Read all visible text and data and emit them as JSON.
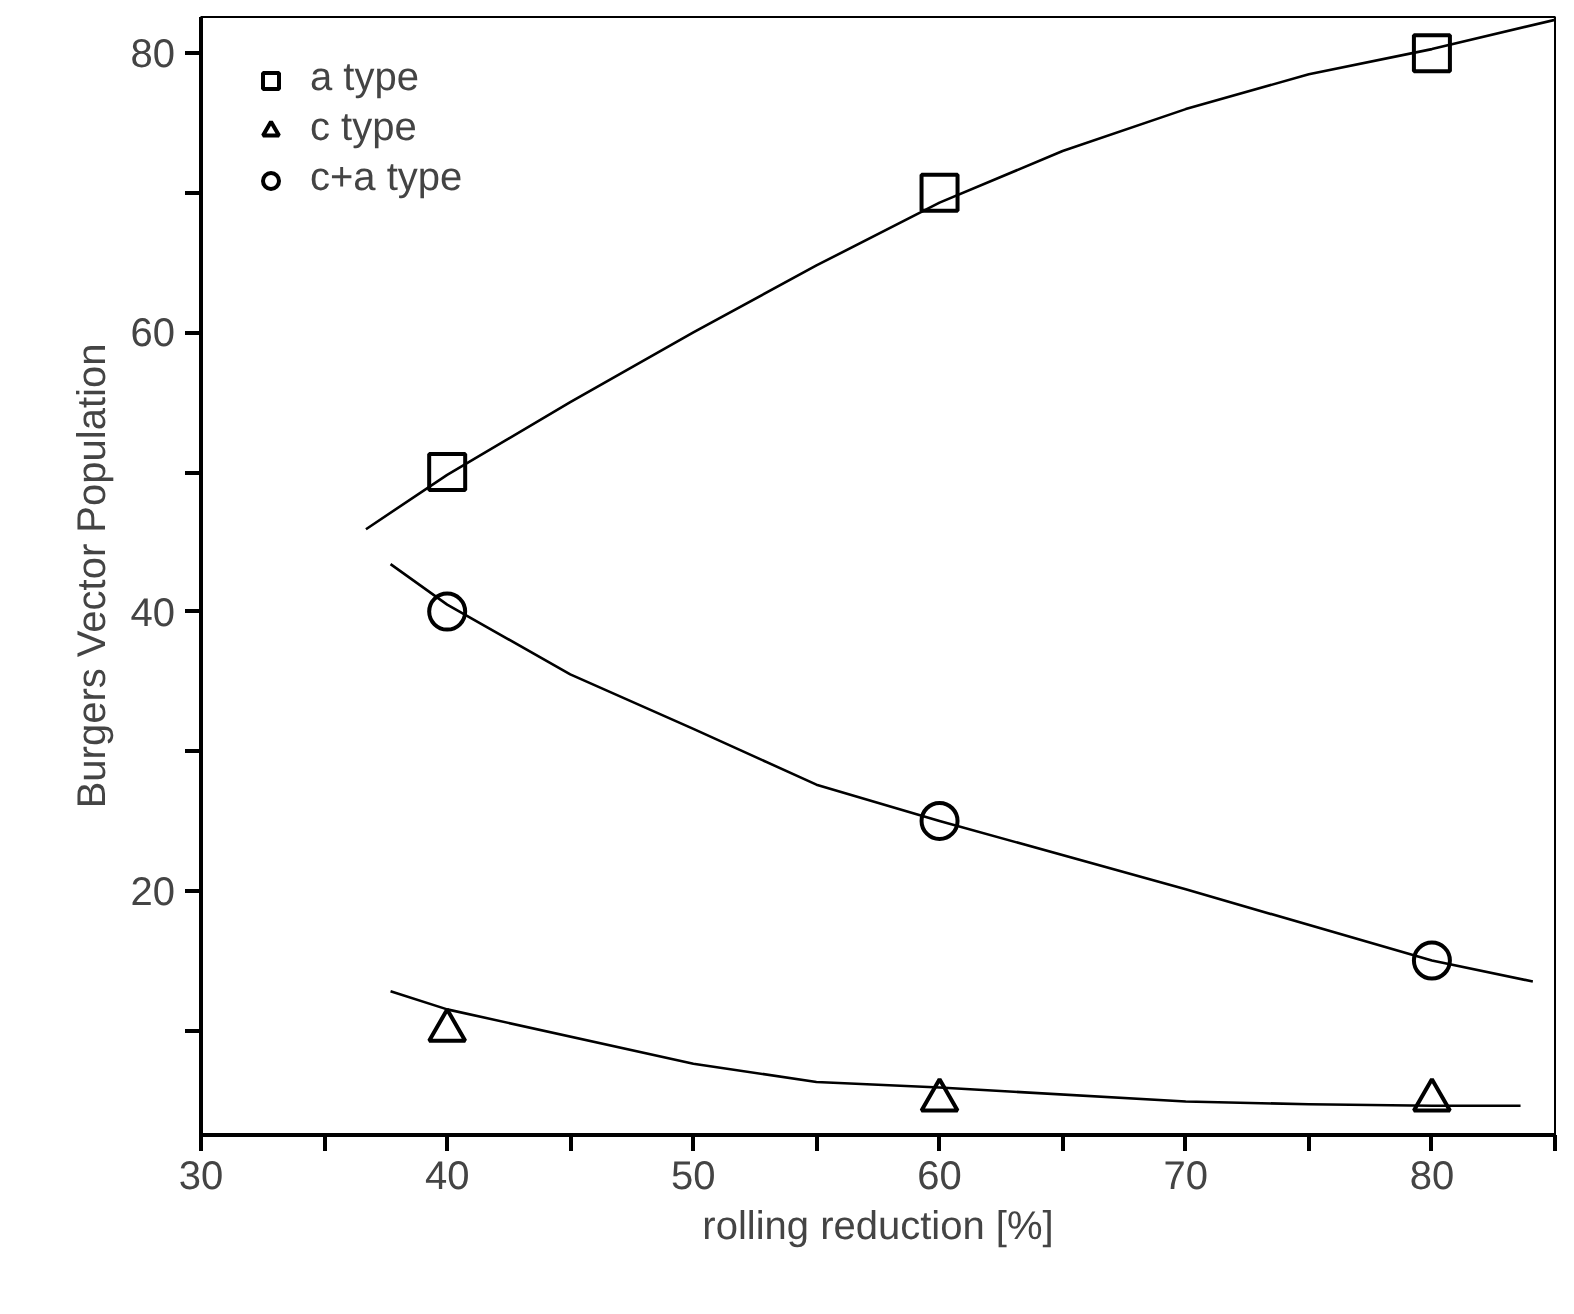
{
  "chart_data": {
    "type": "scatter",
    "xlabel": "rolling reduction [%]",
    "ylabel": "Burgers Vector Population",
    "xlim": [
      30,
      85
    ],
    "ylim": [
      2.5,
      82.6
    ],
    "xticks": [
      30,
      {
        "value": 35,
        "label": null
      },
      40,
      {
        "value": 45,
        "label": null
      },
      50,
      {
        "value": 55,
        "label": null
      },
      60,
      {
        "value": 65,
        "label": null
      },
      70,
      {
        "value": 75,
        "label": null
      },
      80,
      {
        "value": 85,
        "label": null
      }
    ],
    "yticks": [
      {
        "value": 10,
        "label": null
      },
      20,
      {
        "value": 30,
        "label": null
      },
      40,
      {
        "value": 50,
        "label": null
      },
      60,
      {
        "value": 70,
        "label": null
      },
      80
    ],
    "grid": false,
    "legend": "top left",
    "x": [
      40,
      60,
      80
    ],
    "series": [
      {
        "name": "a type",
        "color": "#000000",
        "marker": "square",
        "values": [
          50,
          70,
          80
        ]
      },
      {
        "name": "c type",
        "color": "#000000",
        "marker": "triangle",
        "values": [
          10,
          5,
          5
        ]
      },
      {
        "name": "c+a type",
        "color": "#000000",
        "marker": "circle",
        "values": [
          40,
          25,
          15
        ]
      },
      {
        "type": "line",
        "color": "#000000",
        "marker": "none",
        "x": [
          36.7,
          40,
          45,
          50,
          55,
          60,
          65,
          70,
          75,
          80,
          85
        ],
        "values": [
          45.9,
          49.8,
          55,
          60,
          64.8,
          69.3,
          73,
          76,
          78.5,
          80.3,
          82.4
        ]
      },
      {
        "type": "line",
        "color": "#000000",
        "marker": "none",
        "x": [
          37.7,
          40,
          45,
          50,
          55,
          60,
          70,
          80,
          84.1
        ],
        "values": [
          43.4,
          40.5,
          35.5,
          31.6,
          27.6,
          25,
          20.1,
          15,
          13.5
        ]
      },
      {
        "type": "line",
        "color": "#000000",
        "marker": "none",
        "x": [
          37.7,
          40,
          50,
          55,
          60,
          70,
          75,
          80,
          83.6
        ],
        "values": [
          12.8,
          11.5,
          7.6,
          6.3,
          5.9,
          4.9,
          4.7,
          4.6,
          4.6
        ]
      }
    ]
  }
}
